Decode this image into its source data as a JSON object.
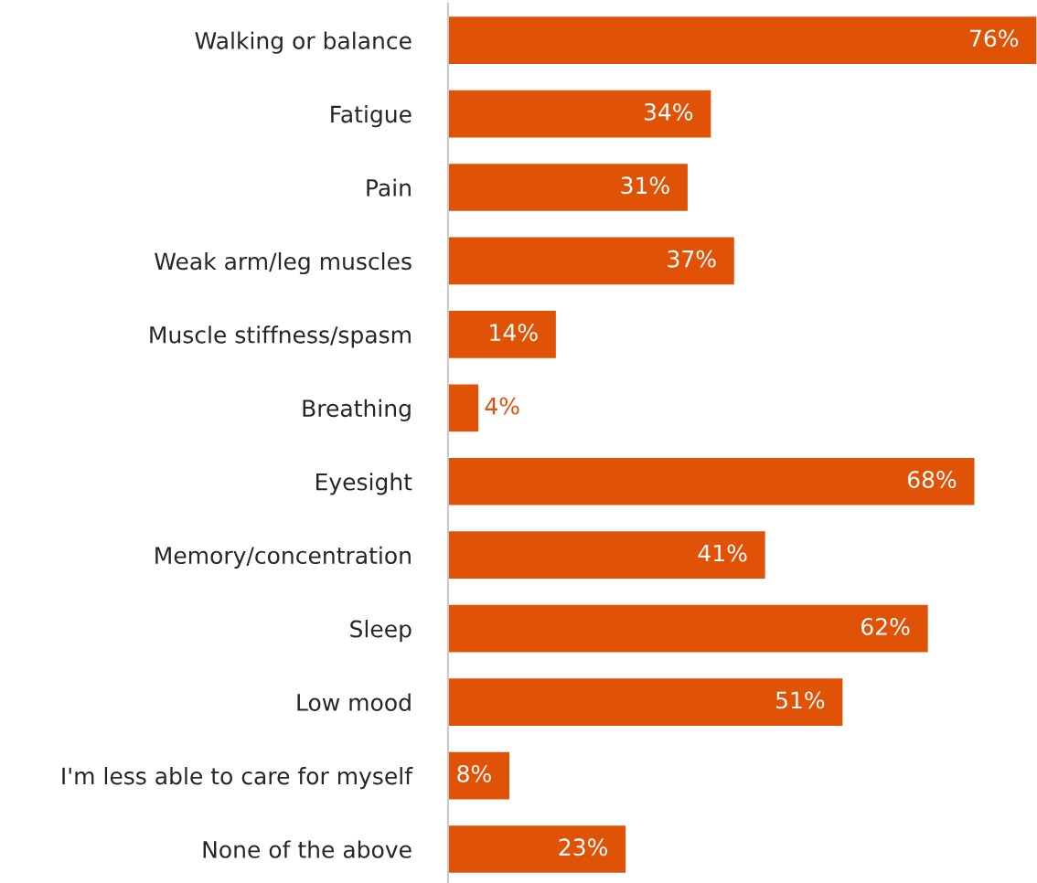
{
  "chart_data": {
    "type": "bar",
    "orientation": "horizontal",
    "categories": [
      "Walking or balance",
      "Fatigue",
      "Pain",
      "Weak arm/leg muscles",
      "Muscle stiffness/spasm",
      "Breathing",
      "Eyesight",
      "Memory/concentration",
      "Sleep",
      "Low mood",
      "I'm less able to care for myself",
      "None of the above"
    ],
    "values": [
      76,
      34,
      31,
      37,
      14,
      4,
      68,
      41,
      62,
      51,
      8,
      23
    ],
    "value_labels": [
      "76%",
      "34%",
      "31%",
      "37%",
      "14%",
      "4%",
      "68%",
      "41%",
      "62%",
      "51%",
      "8%",
      "23%"
    ],
    "color": "#e05206",
    "grid": false,
    "legend": false
  }
}
